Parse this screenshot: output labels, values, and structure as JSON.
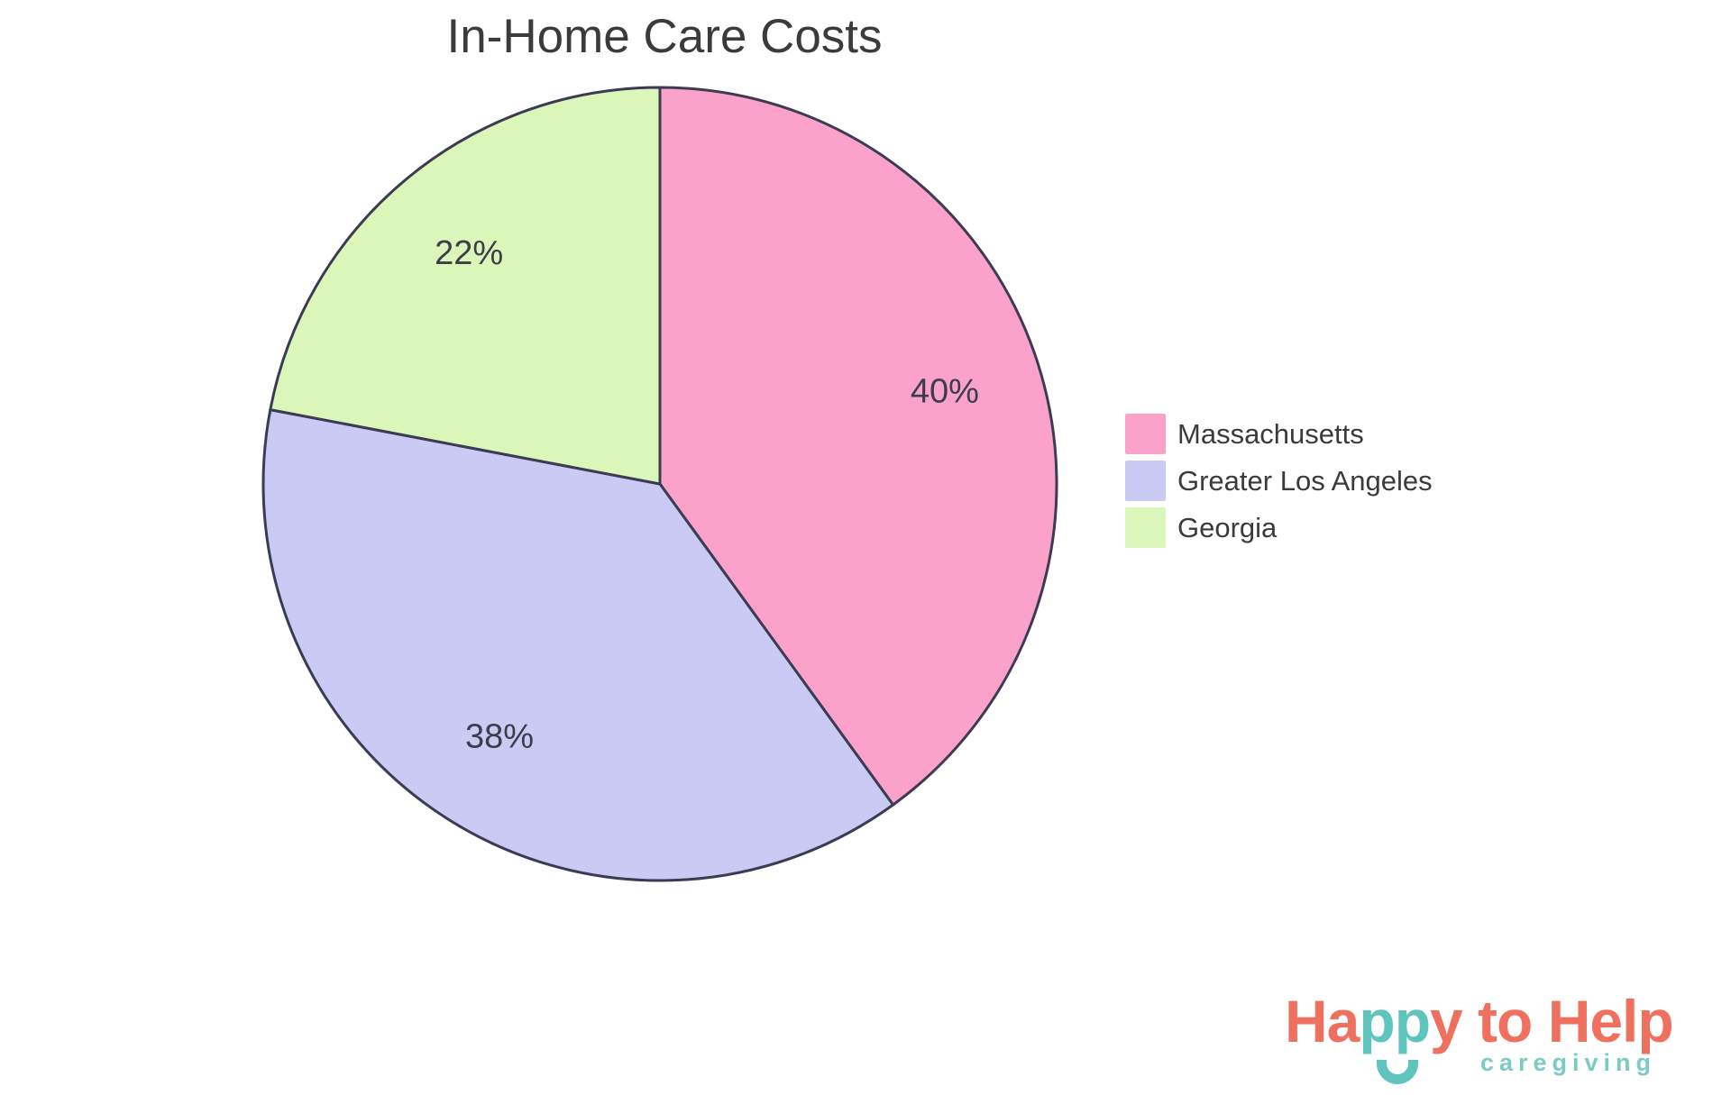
{
  "title": "In-Home Care Costs",
  "chart_data": {
    "type": "pie",
    "title": "In-Home Care Costs",
    "slices": [
      {
        "label": "Massachusetts",
        "value": 40,
        "display": "40%",
        "color": "#FBA2CB"
      },
      {
        "label": "Greater Los Angeles",
        "value": 38,
        "display": "38%",
        "color": "#CACAF5"
      },
      {
        "label": "Georgia",
        "value": 22,
        "display": "22%",
        "color": "#DAF6B9"
      }
    ],
    "start_angle_deg": -90,
    "direction": "clockwise",
    "outline_color": "#3C3B54",
    "label_color": "#3D3D4B",
    "label_radius_fraction": 0.755,
    "legend_position": "right",
    "grid": "off"
  },
  "logo": {
    "word1": "Ha",
    "word2": "pp",
    "word3": "y to Help",
    "tagline": "caregiving",
    "coral_color": "#F0705F",
    "teal_color": "#5FC4BE",
    "tagline_color": "#7CCAC4",
    "smile_icon": "smile-arc"
  }
}
